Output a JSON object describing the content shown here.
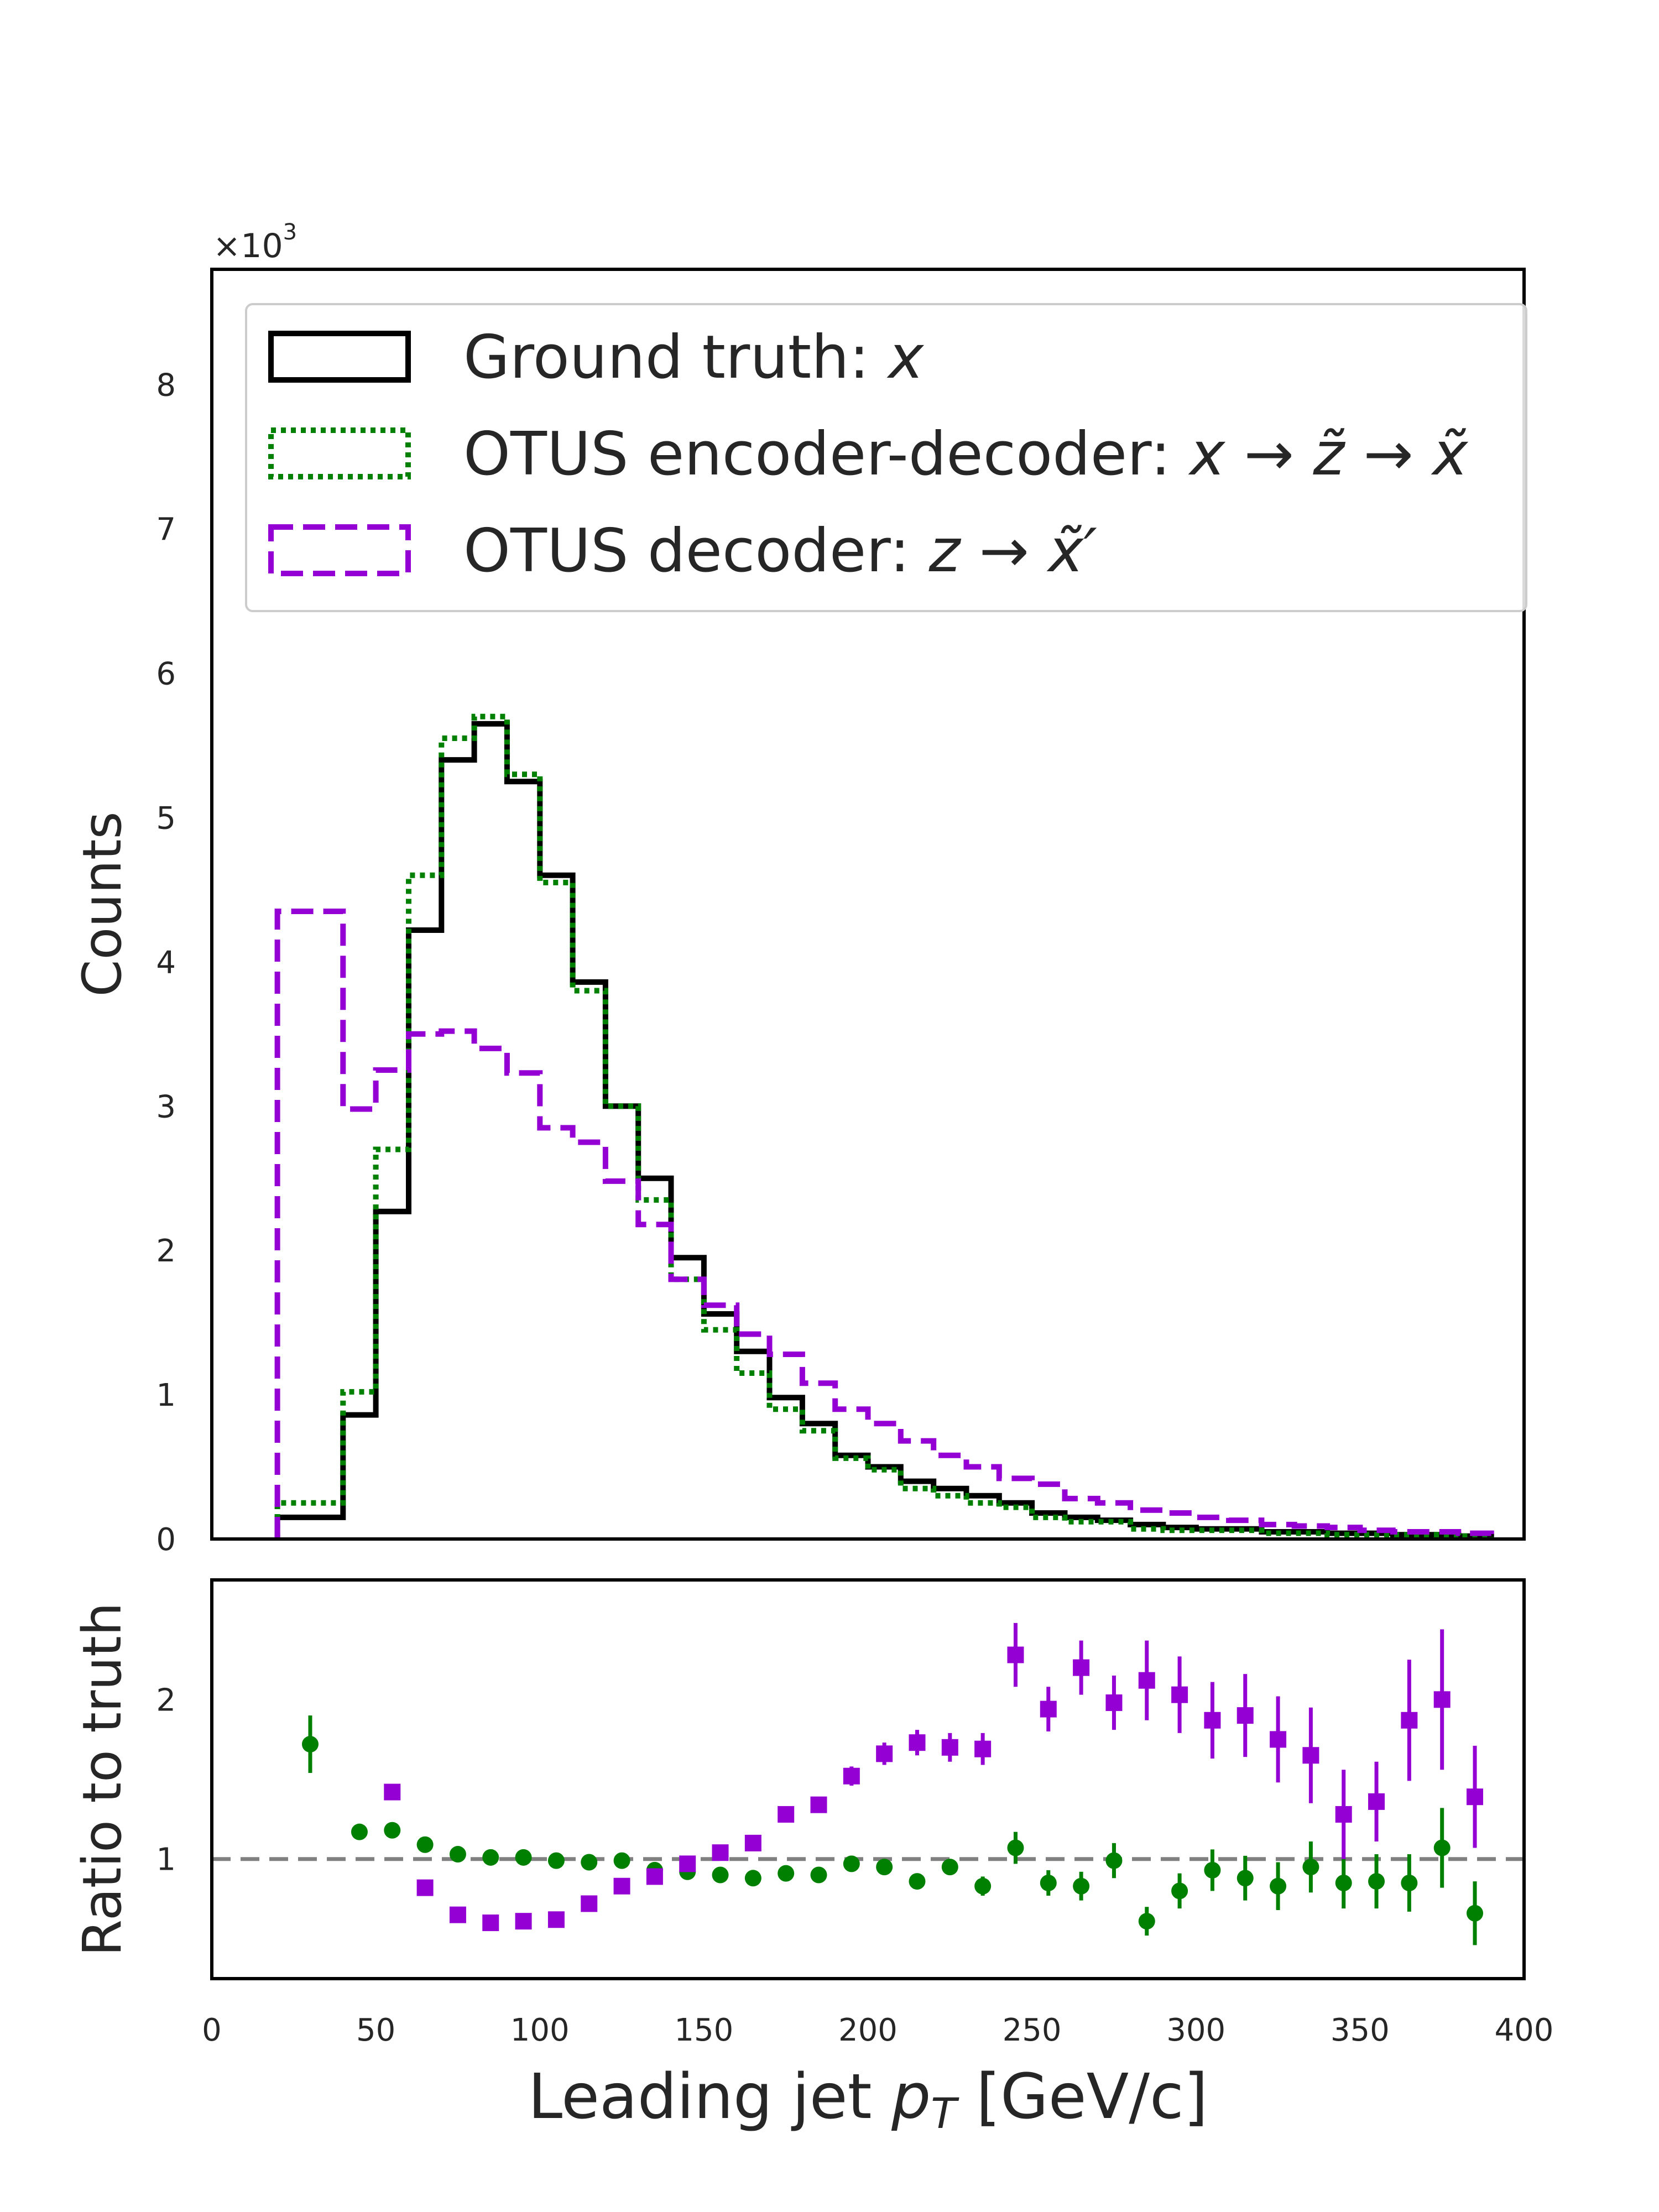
{
  "chart_data": [
    {
      "type": "histogram",
      "panel": "main",
      "ylabel": "Counts",
      "y_multiplier_label": "×10",
      "y_multiplier_exponent": "3",
      "xlim": [
        0,
        400
      ],
      "ylim": [
        0,
        8.8
      ],
      "y_ticks": [
        0,
        1,
        2,
        3,
        4,
        5,
        6,
        7,
        8
      ],
      "grid": false,
      "legend_position": "top",
      "legend": [
        {
          "text": "Ground truth: ",
          "math": "x"
        },
        {
          "text": "OTUS encoder-decoder: ",
          "math": "x → z̃ → x̃"
        },
        {
          "text": "OTUS decoder: ",
          "math": "z → x̃′"
        }
      ],
      "series": [
        {
          "name": "Ground truth: x",
          "style": "solid",
          "color": "#000000",
          "bin_edges": [
            20,
            40,
            50,
            60,
            70,
            80,
            90,
            100,
            110,
            120,
            130,
            140,
            150,
            160,
            170,
            180,
            190,
            200,
            210,
            220,
            230,
            240,
            250,
            260,
            270,
            280,
            290,
            300,
            310,
            320,
            330,
            340,
            350,
            360,
            370,
            380,
            390
          ],
          "values": [
            0.15,
            0.86,
            2.27,
            4.22,
            5.4,
            5.65,
            5.25,
            4.6,
            3.86,
            3.0,
            2.5,
            1.95,
            1.56,
            1.3,
            0.98,
            0.8,
            0.58,
            0.5,
            0.4,
            0.35,
            0.3,
            0.25,
            0.18,
            0.15,
            0.13,
            0.1,
            0.08,
            0.07,
            0.07,
            0.05,
            0.05,
            0.04,
            0.04,
            0.03,
            0.03,
            0.02
          ]
        },
        {
          "name": "OTUS encoder-decoder: x → z̃ → x̃",
          "style": "dotted",
          "color": "#008000",
          "bin_edges": [
            20,
            40,
            50,
            60,
            70,
            80,
            90,
            100,
            110,
            120,
            130,
            140,
            150,
            160,
            170,
            180,
            190,
            200,
            210,
            220,
            230,
            240,
            250,
            260,
            270,
            280,
            290,
            300,
            310,
            320,
            330,
            340,
            350,
            360,
            370,
            380,
            390
          ],
          "values": [
            0.25,
            1.02,
            2.7,
            4.6,
            5.55,
            5.7,
            5.3,
            4.55,
            3.8,
            3.0,
            2.35,
            1.8,
            1.45,
            1.15,
            0.9,
            0.75,
            0.56,
            0.48,
            0.35,
            0.3,
            0.25,
            0.22,
            0.15,
            0.12,
            0.12,
            0.07,
            0.06,
            0.06,
            0.06,
            0.04,
            0.04,
            0.03,
            0.03,
            0.03,
            0.03,
            0.02
          ]
        },
        {
          "name": "OTUS decoder: z → x̃′",
          "style": "dashed",
          "color": "#9400d3",
          "bin_edges": [
            20,
            40,
            50,
            60,
            70,
            80,
            90,
            100,
            110,
            120,
            130,
            140,
            150,
            160,
            170,
            180,
            190,
            200,
            210,
            220,
            230,
            240,
            250,
            260,
            270,
            280,
            290,
            300,
            310,
            320,
            330,
            340,
            350,
            360,
            370,
            380,
            390
          ],
          "values": [
            4.35,
            2.98,
            3.25,
            3.5,
            3.52,
            3.4,
            3.23,
            2.85,
            2.75,
            2.48,
            2.18,
            1.8,
            1.62,
            1.42,
            1.28,
            1.08,
            0.9,
            0.8,
            0.68,
            0.58,
            0.5,
            0.42,
            0.38,
            0.28,
            0.25,
            0.2,
            0.18,
            0.15,
            0.13,
            0.1,
            0.09,
            0.08,
            0.06,
            0.05,
            0.05,
            0.04
          ]
        }
      ]
    },
    {
      "type": "scatter",
      "panel": "ratio",
      "ylabel": "Ratio to truth",
      "xlabel": "Leading jet ",
      "xlabel_math": "p",
      "xlabel_sub": "T",
      "xlabel_units": " [GeV/c]",
      "xlim": [
        0,
        400
      ],
      "ylim": [
        0.25,
        2.75
      ],
      "x_ticks": [
        0,
        50,
        100,
        150,
        200,
        250,
        300,
        350,
        400
      ],
      "y_ticks": [
        1,
        2
      ],
      "reference_line": 1,
      "grid": false,
      "series": [
        {
          "name": "OTUS encoder-decoder: x → z̃ → x̃",
          "marker": "circle",
          "color": "#008000",
          "x": [
            30,
            45,
            55,
            65,
            75,
            85,
            95,
            105,
            115,
            125,
            135,
            145,
            155,
            165,
            175,
            185,
            195,
            205,
            215,
            225,
            235,
            245,
            255,
            265,
            275,
            285,
            295,
            305,
            315,
            325,
            335,
            345,
            355,
            365,
            375,
            385
          ],
          "y": [
            1.72,
            1.17,
            1.18,
            1.09,
            1.03,
            1.01,
            1.01,
            0.99,
            0.98,
            0.99,
            0.93,
            0.92,
            0.9,
            0.88,
            0.91,
            0.9,
            0.97,
            0.95,
            0.86,
            0.95,
            0.83,
            1.07,
            0.85,
            0.83,
            0.99,
            0.61,
            0.8,
            0.93,
            0.88,
            0.83,
            0.95,
            0.85,
            0.86,
            0.85,
            1.07,
            0.66
          ],
          "err": [
            0.18,
            0.03,
            0.03,
            0.02,
            0.02,
            0.02,
            0.02,
            0.02,
            0.02,
            0.02,
            0.02,
            0.02,
            0.02,
            0.02,
            0.03,
            0.03,
            0.04,
            0.04,
            0.05,
            0.05,
            0.06,
            0.1,
            0.08,
            0.09,
            0.11,
            0.09,
            0.11,
            0.13,
            0.14,
            0.15,
            0.16,
            0.16,
            0.17,
            0.18,
            0.25,
            0.2
          ]
        },
        {
          "name": "OTUS decoder: z → x̃′",
          "marker": "square",
          "color": "#9400d3",
          "x": [
            55,
            65,
            75,
            85,
            95,
            105,
            115,
            125,
            135,
            145,
            155,
            165,
            175,
            185,
            195,
            205,
            215,
            225,
            235,
            245,
            255,
            265,
            275,
            285,
            295,
            305,
            315,
            325,
            335,
            345,
            355,
            365,
            375,
            385
          ],
          "y": [
            1.42,
            0.82,
            0.65,
            0.6,
            0.61,
            0.62,
            0.72,
            0.83,
            0.89,
            0.97,
            1.04,
            1.1,
            1.28,
            1.34,
            1.52,
            1.66,
            1.73,
            1.7,
            1.69,
            2.28,
            1.94,
            2.2,
            1.98,
            2.12,
            2.03,
            1.87,
            1.9,
            1.75,
            1.65,
            1.28,
            1.36,
            1.87,
            2.0,
            1.39
          ],
          "err": [
            0.02,
            0.02,
            0.02,
            0.02,
            0.02,
            0.02,
            0.02,
            0.02,
            0.02,
            0.03,
            0.03,
            0.04,
            0.04,
            0.05,
            0.06,
            0.07,
            0.08,
            0.09,
            0.1,
            0.2,
            0.14,
            0.17,
            0.17,
            0.25,
            0.24,
            0.24,
            0.26,
            0.27,
            0.3,
            0.28,
            0.25,
            0.38,
            0.44,
            0.32
          ]
        }
      ]
    }
  ]
}
